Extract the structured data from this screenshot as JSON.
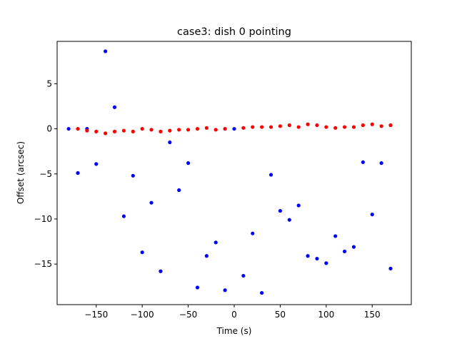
{
  "chart_data": {
    "type": "scatter",
    "title": "case3: dish 0 pointing",
    "xlabel": "Time (s)",
    "ylabel": "Offset (arcsec)",
    "xlim": [
      -192.5,
      192.5
    ],
    "ylim": [
      -19.5,
      9.7
    ],
    "xticks": [
      -150,
      -100,
      -50,
      0,
      50,
      100,
      150
    ],
    "xtick_labels": [
      "−150",
      "−100",
      "−50",
      "0",
      "50",
      "100",
      "150"
    ],
    "yticks": [
      5,
      0,
      -5,
      -10,
      -15
    ],
    "ytick_labels": [
      "5",
      "0",
      "−5",
      "−10",
      "−15"
    ],
    "grid": false,
    "series": [
      {
        "color": "#0000ff",
        "points": [
          [
            -180,
            0.0
          ],
          [
            -170,
            -4.9
          ],
          [
            -160,
            0.0
          ],
          [
            -150,
            -3.9
          ],
          [
            -140,
            8.6
          ],
          [
            -130,
            2.4
          ],
          [
            -120,
            -9.7
          ],
          [
            -110,
            -5.2
          ],
          [
            -100,
            -13.7
          ],
          [
            -90,
            -8.2
          ],
          [
            -80,
            -15.8
          ],
          [
            -70,
            -1.5
          ],
          [
            -60,
            -6.8
          ],
          [
            -50,
            -3.8
          ],
          [
            -40,
            -17.6
          ],
          [
            -30,
            -14.1
          ],
          [
            -20,
            -12.6
          ],
          [
            -10,
            -17.9
          ],
          [
            0,
            0.0
          ],
          [
            10,
            -16.3
          ],
          [
            20,
            -11.6
          ],
          [
            30,
            -18.2
          ],
          [
            40,
            -5.1
          ],
          [
            50,
            -9.1
          ],
          [
            60,
            -10.1
          ],
          [
            70,
            -8.5
          ],
          [
            80,
            -14.1
          ],
          [
            90,
            -14.4
          ],
          [
            100,
            -14.9
          ],
          [
            110,
            -11.9
          ],
          [
            120,
            -13.6
          ],
          [
            130,
            -13.1
          ],
          [
            140,
            -3.7
          ],
          [
            150,
            -9.5
          ],
          [
            160,
            -3.8
          ],
          [
            170,
            -15.5
          ]
        ]
      },
      {
        "color": "#ff0000",
        "points": [
          [
            -170,
            0.0
          ],
          [
            -160,
            -0.2
          ],
          [
            -150,
            -0.3
          ],
          [
            -140,
            -0.5
          ],
          [
            -130,
            -0.3
          ],
          [
            -120,
            -0.2
          ],
          [
            -110,
            -0.3
          ],
          [
            -100,
            0.0
          ],
          [
            -90,
            -0.1
          ],
          [
            -80,
            -0.3
          ],
          [
            -70,
            -0.2
          ],
          [
            -60,
            -0.1
          ],
          [
            -50,
            -0.1
          ],
          [
            -40,
            0.0
          ],
          [
            -30,
            0.1
          ],
          [
            -20,
            -0.1
          ],
          [
            -10,
            0.0
          ],
          [
            10,
            0.1
          ],
          [
            20,
            0.2
          ],
          [
            30,
            0.2
          ],
          [
            40,
            0.2
          ],
          [
            50,
            0.3
          ],
          [
            60,
            0.4
          ],
          [
            70,
            0.2
          ],
          [
            80,
            0.5
          ],
          [
            90,
            0.4
          ],
          [
            100,
            0.2
          ],
          [
            110,
            0.1
          ],
          [
            120,
            0.2
          ],
          [
            130,
            0.2
          ],
          [
            140,
            0.4
          ],
          [
            150,
            0.5
          ],
          [
            160,
            0.3
          ],
          [
            170,
            0.4
          ]
        ]
      }
    ]
  }
}
